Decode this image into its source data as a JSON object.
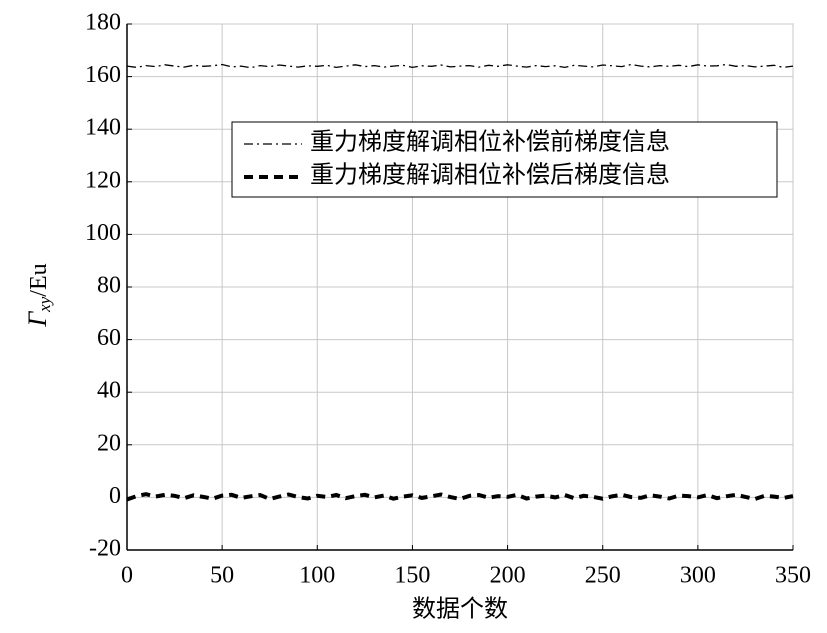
{
  "chart_data": {
    "type": "line",
    "xlabel": "数据个数",
    "ylabel": {
      "symbol": "Γ",
      "subscript": "xy",
      "unit": "/Eu"
    },
    "x": [
      0,
      5,
      10,
      15,
      20,
      25,
      30,
      35,
      40,
      45,
      50,
      55,
      60,
      65,
      70,
      75,
      80,
      85,
      90,
      95,
      100,
      105,
      110,
      115,
      120,
      125,
      130,
      135,
      140,
      145,
      150,
      155,
      160,
      165,
      170,
      175,
      180,
      185,
      190,
      195,
      200,
      205,
      210,
      215,
      220,
      225,
      230,
      235,
      240,
      245,
      250,
      255,
      260,
      265,
      270,
      275,
      280,
      285,
      290,
      295,
      300,
      305,
      310,
      315,
      320,
      325,
      330,
      335,
      340,
      345,
      350
    ],
    "series": [
      {
        "name": "重力梯度解调相位补偿前梯度信息",
        "color": "#000000",
        "linestyle": "dashdot",
        "values": [
          164,
          163.5,
          164.2,
          163.8,
          164.5,
          164,
          163.6,
          164.3,
          163.9,
          164.1,
          164.6,
          163.7,
          164,
          163.4,
          164.2,
          163.8,
          164.4,
          164,
          163.6,
          164.1,
          163.9,
          164.3,
          163.5,
          164,
          164.5,
          163.8,
          164.2,
          163.6,
          164,
          164.3,
          163.5,
          164.1,
          163.9,
          164.4,
          163.7,
          164,
          164.2,
          163.6,
          164.3,
          163.9,
          164.5,
          164,
          163.6,
          164.2,
          163.8,
          164.1,
          163.5,
          164.3,
          164,
          163.7,
          164.4,
          164.1,
          163.8,
          164.6,
          164,
          163.7,
          164.2,
          163.9,
          164.3,
          163.8,
          164.5,
          164,
          164.1,
          164.6,
          163.9,
          164.2,
          163.7,
          164,
          164.3,
          163.5,
          164
        ]
      },
      {
        "name": "重力梯度解调相位补偿后梯度信息",
        "color": "#000000",
        "linestyle": "dashed",
        "values": [
          -0.8,
          0.5,
          1.2,
          0.3,
          1,
          0.6,
          -0.3,
          0.8,
          0.2,
          -0.5,
          0.7,
          1,
          -0.2,
          0.4,
          0.9,
          -0.6,
          0.3,
          1.1,
          0.1,
          -0.4,
          0.6,
          0.2,
          0.9,
          -0.3,
          0.5,
          1,
          0,
          0.7,
          -0.5,
          0.3,
          0.8,
          -0.2,
          0.4,
          1.1,
          0.1,
          -0.6,
          0.6,
          0.9,
          -0.1,
          0.5,
          0.2,
          1,
          -0.4,
          0.3,
          0.7,
          0,
          0.9,
          -0.3,
          0.6,
          0.2,
          -0.5,
          0.4,
          1,
          0.1,
          -0.2,
          0.8,
          0.3,
          -0.4,
          0.7,
          0.5,
          0,
          0.9,
          -0.3,
          0.4,
          1,
          0.2,
          -0.6,
          0.6,
          0.3,
          -0.2,
          0.5
        ]
      }
    ],
    "xlim": [
      0,
      350
    ],
    "xticks": [
      0,
      50,
      100,
      150,
      200,
      250,
      300,
      350
    ],
    "ylim": [
      -20,
      180
    ],
    "yticks": [
      -20,
      0,
      20,
      40,
      60,
      80,
      100,
      120,
      140,
      160,
      180
    ],
    "grid": true,
    "legend": "upper right"
  }
}
